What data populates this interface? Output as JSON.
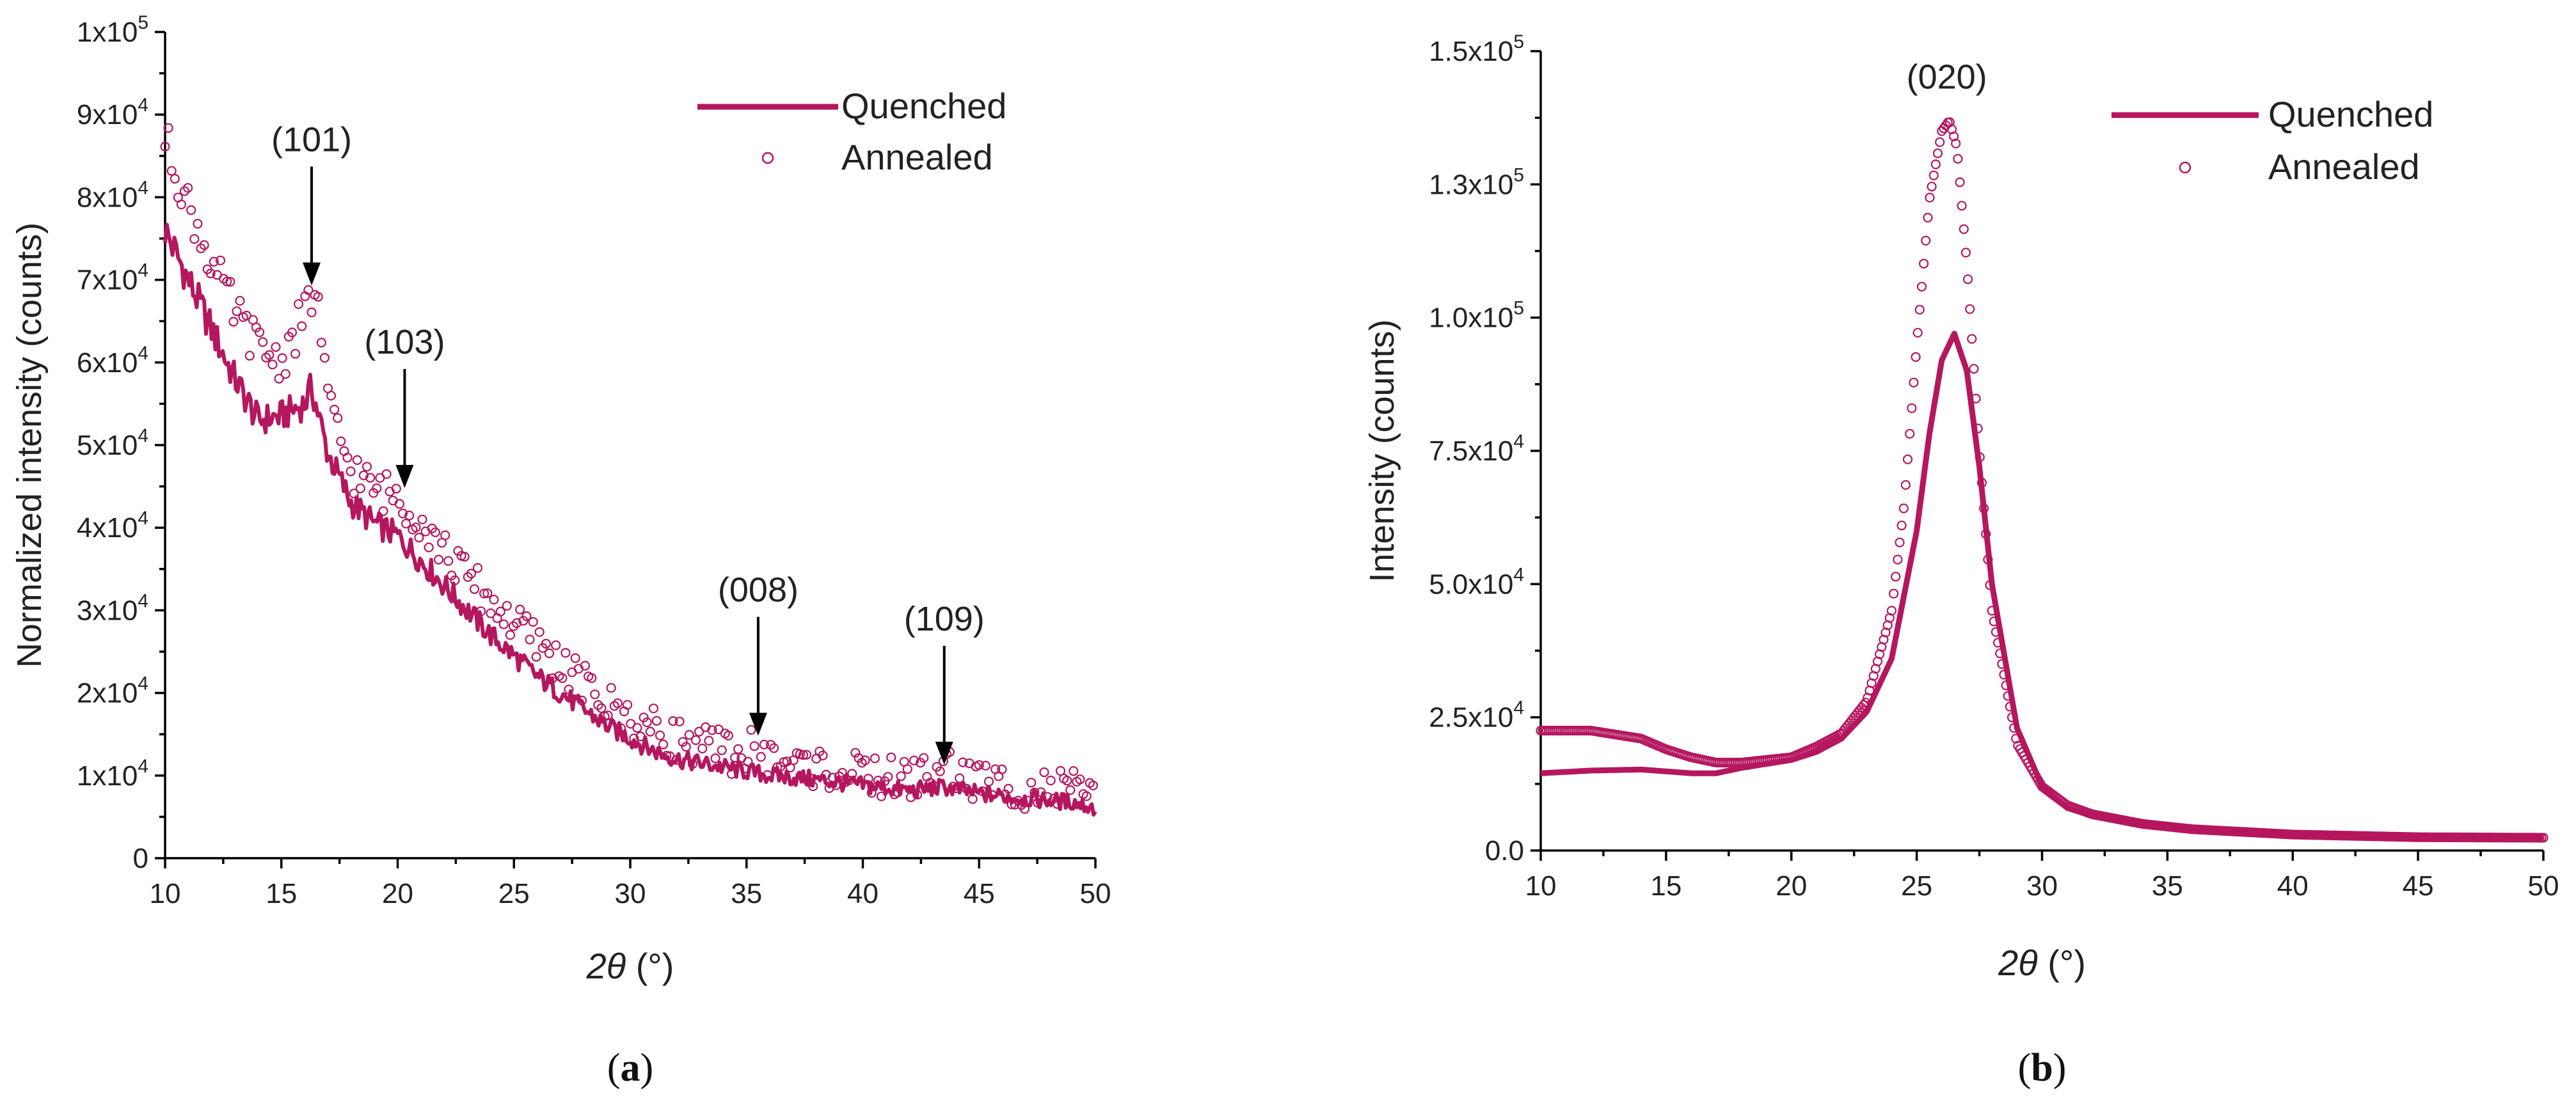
{
  "chart_data": [
    {
      "panel": "(a)",
      "panel_parts": [
        "(",
        "a",
        ")"
      ],
      "type": "scatter",
      "ylabel": "Normalized intensity (counts)",
      "xlabel_italic": "2θ",
      "xlabel_unit": " (°)",
      "xlim": [
        10,
        50
      ],
      "ylim": [
        0,
        100000
      ],
      "xticks": [
        10,
        15,
        20,
        25,
        30,
        35,
        40,
        45,
        50
      ],
      "xtick_labels": [
        "10",
        "15",
        "20",
        "25",
        "30",
        "35",
        "40",
        "45",
        "50"
      ],
      "yticks": [
        0,
        10000,
        20000,
        30000,
        40000,
        50000,
        60000,
        70000,
        80000,
        90000,
        100000
      ],
      "ytick_mantissa": [
        "0",
        "1x10",
        "2x10",
        "3x10",
        "4x10",
        "5x10",
        "6x10",
        "7x10",
        "8x10",
        "9x10",
        "1x10"
      ],
      "ytick_exponent": [
        "",
        "4",
        "4",
        "4",
        "4",
        "4",
        "4",
        "4",
        "4",
        "4",
        "5"
      ],
      "legend": {
        "position": "top-right",
        "entries": [
          "Quenched",
          "Annealed"
        ]
      },
      "series": [
        {
          "name": "Quenched",
          "style": "line",
          "x": [
            10,
            11,
            12,
            13,
            14,
            15,
            16,
            16.3,
            17,
            18,
            19,
            20,
            21,
            22,
            23,
            24,
            25,
            26,
            27,
            28,
            29,
            30,
            31,
            32,
            33,
            34,
            35,
            36,
            38,
            40,
            42,
            43.5,
            45,
            47,
            49,
            50
          ],
          "y": [
            76000,
            70000,
            64000,
            58000,
            53000,
            53500,
            55000,
            57000,
            49000,
            43000,
            40500,
            39000,
            36000,
            33000,
            30000,
            27000,
            24500,
            22000,
            20000,
            18000,
            16000,
            14500,
            13000,
            12000,
            11500,
            11000,
            10500,
            10000,
            9500,
            8800,
            8200,
            8600,
            7800,
            7200,
            6800,
            6000
          ]
        },
        {
          "name": "Annealed",
          "style": "markers",
          "x": [
            10,
            11,
            12,
            13,
            14,
            15,
            16,
            16.5,
            17,
            18,
            19,
            20,
            21,
            22,
            23,
            24,
            25,
            26,
            27,
            28,
            29,
            30,
            31,
            32,
            33,
            34,
            35,
            35.5,
            36,
            38,
            40,
            42,
            43.5,
            45,
            47,
            49,
            50
          ],
          "y": [
            87000,
            79000,
            72000,
            66000,
            62000,
            60000,
            66000,
            69000,
            55000,
            47000,
            44500,
            44000,
            41000,
            37000,
            34000,
            31000,
            28500,
            26000,
            23500,
            21000,
            18500,
            17000,
            15500,
            14500,
            13500,
            13000,
            12500,
            14500,
            12000,
            11000,
            10000,
            9500,
            11000,
            9200,
            8500,
            8000,
            7500
          ]
        }
      ],
      "annotations": [
        {
          "label": "(101)",
          "x": 16.3,
          "y": 69000
        },
        {
          "label": "(103)",
          "x": 20.3,
          "y": 44500
        },
        {
          "label": "(008)",
          "x": 35.5,
          "y": 14500
        },
        {
          "label": "(109)",
          "x": 43.5,
          "y": 11000
        }
      ]
    },
    {
      "panel": "(b)",
      "panel_parts": [
        "(",
        "b",
        ")"
      ],
      "type": "scatter",
      "ylabel": "Intensity (counts)",
      "xlabel_italic": "2θ",
      "xlabel_unit": " (°)",
      "xlim": [
        10,
        50
      ],
      "ylim": [
        0,
        150000
      ],
      "xticks": [
        10,
        15,
        20,
        25,
        30,
        35,
        40,
        45,
        50
      ],
      "xtick_labels": [
        "10",
        "15",
        "20",
        "25",
        "30",
        "35",
        "40",
        "45",
        "50"
      ],
      "yticks": [
        0,
        25000,
        50000,
        75000,
        100000,
        125000,
        150000
      ],
      "ytick_mantissa": [
        "0.0",
        "2.5x10",
        "5.0x10",
        "7.5x10",
        "1.0x10",
        "1.3x10",
        "1.5x10"
      ],
      "ytick_exponent": [
        "",
        "4",
        "4",
        "4",
        "5",
        "5",
        "5"
      ],
      "legend": {
        "position": "top-right",
        "entries": [
          "Quenched",
          "Annealed"
        ]
      },
      "series": [
        {
          "name": "Quenched",
          "style": "line",
          "x": [
            10,
            12,
            14,
            16,
            17,
            18,
            20,
            21,
            22,
            23,
            24,
            25,
            25.5,
            26,
            26.5,
            27,
            27.5,
            28,
            29,
            30,
            31,
            32,
            34,
            36,
            40,
            45,
            50
          ],
          "y": [
            14500,
            15000,
            15200,
            14500,
            14500,
            15500,
            17000,
            18500,
            21000,
            26000,
            36000,
            60000,
            78000,
            92000,
            97000,
            90000,
            72000,
            50000,
            23000,
            12000,
            8000,
            6500,
            5000,
            4000,
            3000,
            2600,
            2500
          ]
        },
        {
          "name": "Annealed",
          "style": "markers",
          "x": [
            10,
            12,
            14,
            15,
            16,
            17,
            18,
            20,
            21,
            22,
            23,
            24,
            24.5,
            25,
            25.5,
            26,
            26.3,
            26.6,
            27,
            27.5,
            28,
            29,
            30,
            31,
            32,
            34,
            36,
            40,
            45,
            50
          ],
          "y": [
            22500,
            22500,
            21000,
            19000,
            17500,
            16500,
            16500,
            17500,
            19500,
            22000,
            28000,
            45000,
            65000,
            95000,
            122000,
            135000,
            137000,
            132000,
            110000,
            75000,
            45000,
            20000,
            12000,
            8500,
            6800,
            5000,
            4000,
            3000,
            2500,
            2400
          ]
        }
      ],
      "annotations": [
        {
          "label": "(020)",
          "x": 26.2,
          "y": 137000
        }
      ]
    }
  ],
  "colors": {
    "series": "#b5175f",
    "text": "#222222",
    "axis": "#000000"
  }
}
